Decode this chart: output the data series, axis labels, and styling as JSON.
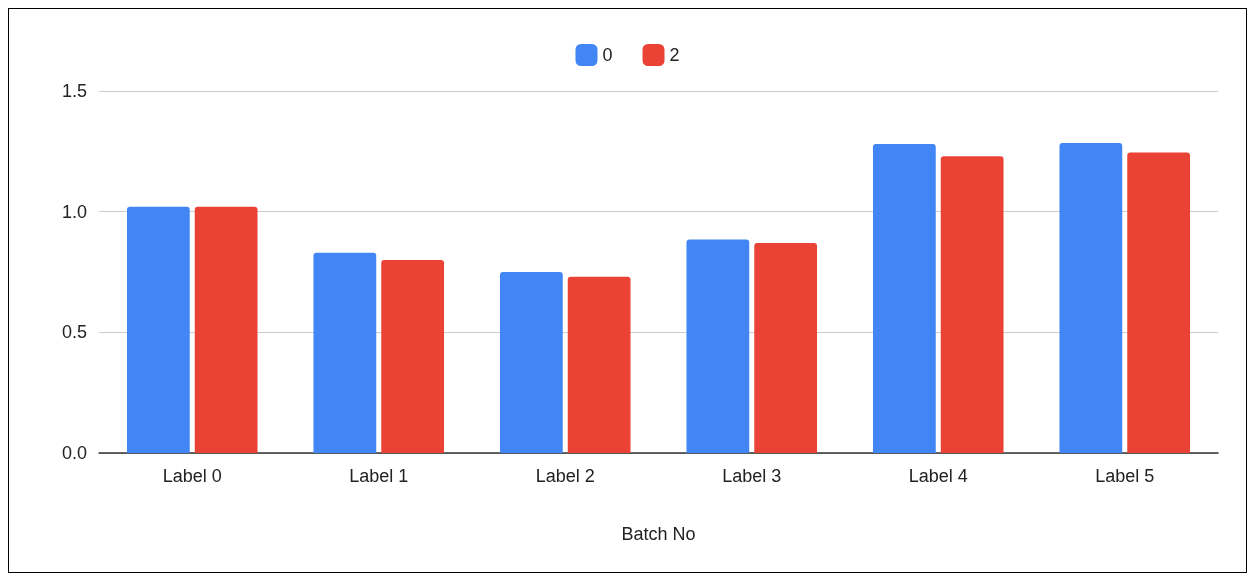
{
  "chart_data": {
    "type": "bar",
    "xlabel": "Batch No",
    "categories": [
      "Label 0",
      "Label 1",
      "Label 2",
      "Label 3",
      "Label 4",
      "Label 5"
    ],
    "series": [
      {
        "name": "0",
        "color": "#4285f4",
        "values": [
          1.02,
          0.83,
          0.75,
          0.885,
          1.28,
          1.285
        ]
      },
      {
        "name": "2",
        "color": "#ea4335",
        "values": [
          1.02,
          0.8,
          0.73,
          0.87,
          1.23,
          1.245
        ]
      }
    ],
    "ylim": [
      0,
      1.5
    ],
    "yticks": [
      {
        "value": 0,
        "label": "0.0"
      },
      {
        "value": 0.5,
        "label": "0.5"
      },
      {
        "value": 1,
        "label": "1.0"
      },
      {
        "value": 1.5,
        "label": "1.5"
      }
    ],
    "grid": "y",
    "legend": "top"
  }
}
